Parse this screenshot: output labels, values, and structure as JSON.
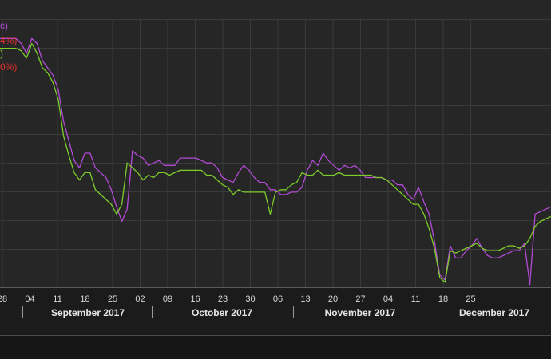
{
  "chart_data": {
    "type": "line",
    "title": "",
    "xlabel": "",
    "ylabel": "",
    "grid": true,
    "legend_placement": "top-left",
    "x_ticks": [
      "28",
      "04",
      "11",
      "18",
      "25",
      "02",
      "09",
      "16",
      "23",
      "30",
      "06",
      "13",
      "20",
      "27",
      "04",
      "11",
      "18",
      "25"
    ],
    "months": [
      "September 2017",
      "October 2017",
      "November 2017",
      "December 2017"
    ],
    "legend_text": [
      {
        "text": "c)",
        "color": "#b24bd6"
      },
      {
        "text": "4%)",
        "color": "#e03030"
      },
      {
        "text": ")",
        "color": "#7ccc2a"
      },
      {
        "text": "0%)",
        "color": "#e03030"
      }
    ],
    "colors": {
      "background": "#1b1b1b",
      "plot_bg": "#262626",
      "grid": "#3a3a3a",
      "purple": "#b24bd6",
      "green": "#7ccc2a"
    },
    "series": [
      {
        "color": "#b24bd6",
        "values": [
          62,
          62,
          62,
          62,
          60,
          56,
          62,
          60,
          53,
          50,
          47,
          41,
          28,
          20,
          12,
          9,
          15,
          15,
          9,
          7,
          5,
          0,
          -7,
          -13,
          -8,
          16,
          14,
          13,
          10,
          11,
          12,
          10,
          10,
          10,
          13,
          13,
          13,
          13,
          12,
          11,
          11,
          9,
          5,
          4,
          3,
          7,
          10,
          8,
          5,
          3,
          3,
          0,
          0,
          -2,
          -2,
          -1,
          -1,
          1,
          8,
          12,
          10,
          15,
          12,
          10,
          8,
          10,
          9,
          10,
          8,
          5,
          5,
          5,
          5,
          4,
          4,
          2,
          2,
          -2,
          -4,
          1,
          -5,
          -10,
          -21,
          -35,
          -37,
          -23,
          -28,
          -28,
          -25,
          -23,
          -20,
          -24,
          -27,
          -28,
          -28,
          -27,
          -26,
          -25,
          -25,
          -22,
          -39,
          -10,
          -9,
          -8,
          -7
        ]
      },
      {
        "color": "#7ccc2a",
        "values": [
          58,
          58,
          58,
          58,
          57,
          54,
          60,
          56,
          50,
          48,
          44,
          37,
          22,
          14,
          7,
          4,
          7,
          7,
          0,
          -2,
          -4,
          -6,
          -10,
          -6,
          11,
          9,
          7,
          4,
          6,
          5,
          7,
          7,
          6,
          7,
          8,
          8,
          8,
          8,
          8,
          6,
          6,
          4,
          2,
          1,
          -2,
          0,
          -1,
          -1,
          -1,
          -1,
          -1,
          -10,
          -1,
          0,
          0,
          2,
          3,
          7,
          6,
          6,
          8,
          6,
          6,
          6,
          7,
          6,
          6,
          6,
          6,
          6,
          6,
          5,
          5,
          4,
          2,
          0,
          -2,
          -4,
          -6,
          -6,
          -10,
          -16,
          -24,
          -36,
          -38,
          -25,
          -26,
          -25,
          -24,
          -23,
          -22,
          -24,
          -25,
          -25,
          -25,
          -24,
          -23,
          -23,
          -24,
          -23,
          -20,
          -15,
          -13,
          -12,
          -11
        ]
      }
    ],
    "ylim": [
      -40,
      70
    ]
  }
}
